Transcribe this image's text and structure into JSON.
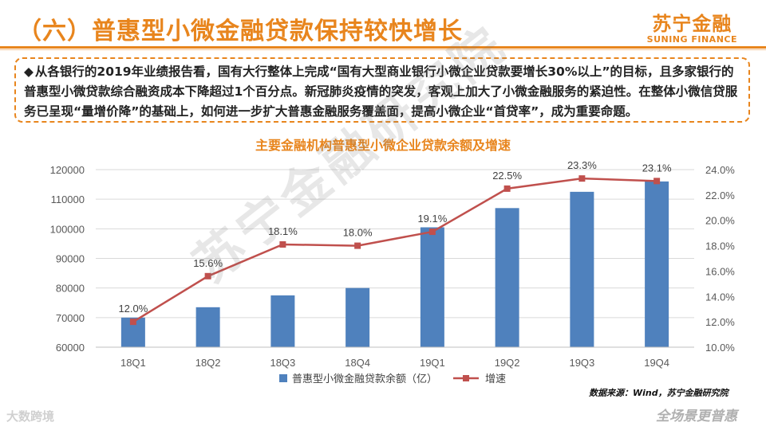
{
  "header": {
    "title": "（六）普惠型小微金融贷款保持较快增长",
    "logo_main": "苏宁金融",
    "logo_sub": "SUNING FINANCE"
  },
  "callout": {
    "bullet": "◆",
    "text": "从各银行的2019年业绩报告看，国有大行整体上完成“国有大型商业银行小微企业贷款要增长30%以上”的目标，且多家银行的普惠型小微贷款综合融资成本下降超过1个百分点。新冠肺炎疫情的突发，客观上加大了小微金融服务的紧迫性。在整体小微信贷服务已呈现“量增价降”的基础上，如何进一步扩大普惠金融服务覆盖面，提高小微企业“首贷率”，成为重要命题。"
  },
  "chart_data": {
    "type": "bar",
    "title": "主要金融机构普惠型小微企业贷款余额及增速",
    "categories": [
      "18Q1",
      "18Q2",
      "18Q3",
      "18Q4",
      "19Q1",
      "19Q2",
      "19Q3",
      "19Q4"
    ],
    "series": [
      {
        "name": "普惠型小微金融贷款余额（亿）",
        "type": "bar",
        "axis": "left",
        "values": [
          70000,
          73500,
          77500,
          80000,
          100500,
          107000,
          112500,
          116000
        ]
      },
      {
        "name": "增速",
        "type": "line",
        "axis": "right",
        "values": [
          12.0,
          15.6,
          18.1,
          18.0,
          19.1,
          22.5,
          23.3,
          23.1
        ],
        "labels": [
          "12.0%",
          "15.6%",
          "18.1%",
          "18.0%",
          "19.1%",
          "22.5%",
          "23.3%",
          "23.1%"
        ]
      }
    ],
    "ylim_left": [
      60000,
      120000
    ],
    "yticks_left": [
      "60000",
      "70000",
      "80000",
      "90000",
      "100000",
      "110000",
      "120000"
    ],
    "ylim_right": [
      10,
      24
    ],
    "yticks_right": [
      "10.0%",
      "12.0%",
      "14.0%",
      "16.0%",
      "18.0%",
      "20.0%",
      "22.0%",
      "24.0%"
    ],
    "grid": true,
    "legend": "bottom",
    "colors": {
      "bar": "#4f81bd",
      "line": "#c0504d",
      "grid": "#d9d9d9",
      "title": "#e8851d"
    }
  },
  "source": "数据来源：Wind，苏宁金融研究院",
  "footer": {
    "left": "大数跨境",
    "right": "全场景更普惠"
  },
  "watermark": "苏宁金融研究院"
}
